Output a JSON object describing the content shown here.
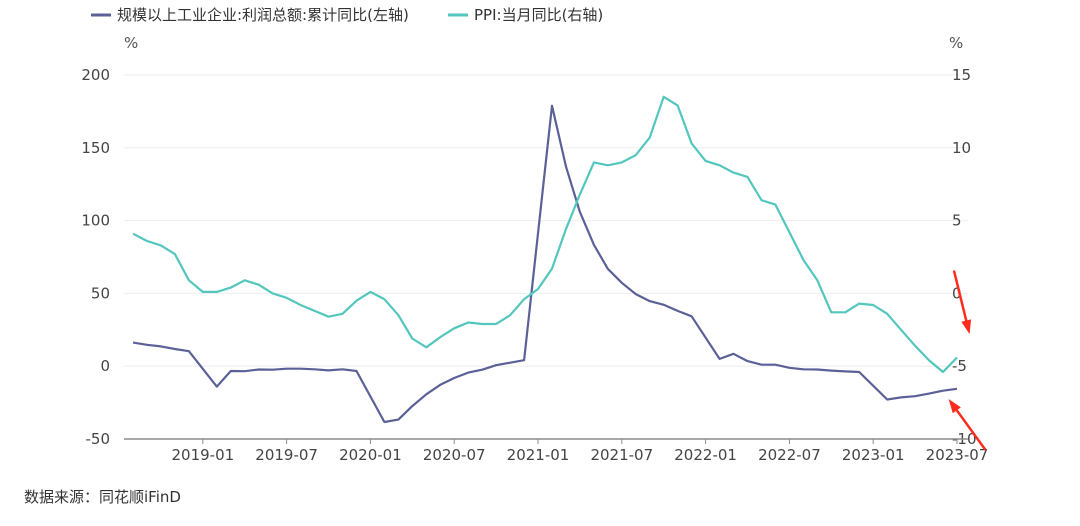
{
  "chart_data": {
    "type": "line",
    "title": "",
    "colors": {
      "series1": "#5b6197",
      "series2": "#53c6bd",
      "arrow": "#ff2b1c",
      "grid": "#eeeeee",
      "axis": "#8c8c8c"
    },
    "legend": {
      "position": "top-left",
      "entries": [
        "规模以上工业企业:利润总额:累计同比(左轴)",
        "PPI:当月同比(右轴)"
      ]
    },
    "left_axis": {
      "unit": "%",
      "ylim": [
        -50,
        200
      ],
      "ticks": [
        "200",
        "150",
        "100",
        "50",
        "0",
        "-50"
      ],
      "tick_values": [
        200,
        150,
        100,
        50,
        0,
        -50
      ]
    },
    "right_axis": {
      "unit": "%",
      "ylim": [
        -10,
        15
      ],
      "ticks": [
        "15",
        "10",
        "5",
        "0",
        "-5",
        "-10"
      ],
      "tick_values": [
        15,
        10,
        5,
        0,
        -5,
        -10
      ]
    },
    "x": {
      "start_month": "2018-08",
      "end_month": "2023-07",
      "tick_labels": [
        "2019-01",
        "2019-07",
        "2020-01",
        "2020-07",
        "2021-01",
        "2021-07",
        "2022-01",
        "2022-07",
        "2023-01",
        "2023-07"
      ],
      "tick_index": [
        5,
        11,
        17,
        23,
        29,
        35,
        41,
        47,
        53,
        59
      ]
    },
    "series": [
      {
        "name": "规模以上工业企业:利润总额:累计同比(左轴)",
        "axis": "left",
        "points": [
          [
            0,
            16.2
          ],
          [
            1,
            14.7
          ],
          [
            2,
            13.6
          ],
          [
            3,
            11.8
          ],
          [
            4,
            10.3
          ],
          [
            6,
            -14.0
          ],
          [
            7,
            -3.3
          ],
          [
            8,
            -3.4
          ],
          [
            9,
            -2.3
          ],
          [
            10,
            -2.4
          ],
          [
            11,
            -1.7
          ],
          [
            12,
            -1.7
          ],
          [
            13,
            -2.1
          ],
          [
            14,
            -2.9
          ],
          [
            15,
            -2.1
          ],
          [
            16,
            -3.3
          ],
          [
            18,
            -38.3
          ],
          [
            19,
            -36.7
          ],
          [
            20,
            -27.4
          ],
          [
            21,
            -19.3
          ],
          [
            22,
            -12.8
          ],
          [
            23,
            -8.1
          ],
          [
            24,
            -4.4
          ],
          [
            25,
            -2.4
          ],
          [
            26,
            0.7
          ],
          [
            27,
            2.4
          ],
          [
            28,
            4.1
          ],
          [
            30,
            178.9
          ],
          [
            31,
            137.3
          ],
          [
            32,
            106.0
          ],
          [
            33,
            83.4
          ],
          [
            34,
            66.9
          ],
          [
            35,
            57.3
          ],
          [
            36,
            49.5
          ],
          [
            37,
            44.7
          ],
          [
            38,
            42.2
          ],
          [
            39,
            38.0
          ],
          [
            40,
            34.3
          ],
          [
            42,
            5.0
          ],
          [
            43,
            8.5
          ],
          [
            44,
            3.5
          ],
          [
            45,
            1.0
          ],
          [
            46,
            1.0
          ],
          [
            47,
            -1.1
          ],
          [
            48,
            -2.1
          ],
          [
            49,
            -2.3
          ],
          [
            50,
            -3.0
          ],
          [
            51,
            -3.6
          ],
          [
            52,
            -4.0
          ],
          [
            54,
            -22.9
          ],
          [
            55,
            -21.4
          ],
          [
            56,
            -20.6
          ],
          [
            57,
            -18.8
          ],
          [
            58,
            -16.8
          ],
          [
            59,
            -15.5
          ]
        ]
      },
      {
        "name": "PPI:当月同比(右轴)",
        "axis": "right",
        "points": [
          [
            0,
            4.1
          ],
          [
            1,
            3.6
          ],
          [
            2,
            3.3
          ],
          [
            3,
            2.7
          ],
          [
            4,
            0.9
          ],
          [
            5,
            0.1
          ],
          [
            6,
            0.1
          ],
          [
            7,
            0.4
          ],
          [
            8,
            0.9
          ],
          [
            9,
            0.6
          ],
          [
            10,
            0.0
          ],
          [
            11,
            -0.3
          ],
          [
            12,
            -0.8
          ],
          [
            13,
            -1.2
          ],
          [
            14,
            -1.6
          ],
          [
            15,
            -1.4
          ],
          [
            16,
            -0.5
          ],
          [
            17,
            0.1
          ],
          [
            18,
            -0.4
          ],
          [
            19,
            -1.5
          ],
          [
            20,
            -3.1
          ],
          [
            21,
            -3.7
          ],
          [
            22,
            -3.0
          ],
          [
            23,
            -2.4
          ],
          [
            24,
            -2.0
          ],
          [
            25,
            -2.1
          ],
          [
            26,
            -2.1
          ],
          [
            27,
            -1.5
          ],
          [
            28,
            -0.4
          ],
          [
            29,
            0.3
          ],
          [
            30,
            1.7
          ],
          [
            31,
            4.4
          ],
          [
            32,
            6.8
          ],
          [
            33,
            9.0
          ],
          [
            34,
            8.8
          ],
          [
            35,
            9.0
          ],
          [
            36,
            9.5
          ],
          [
            37,
            10.7
          ],
          [
            38,
            13.5
          ],
          [
            39,
            12.9
          ],
          [
            40,
            10.3
          ],
          [
            41,
            9.1
          ],
          [
            42,
            8.8
          ],
          [
            43,
            8.3
          ],
          [
            44,
            8.0
          ],
          [
            45,
            6.4
          ],
          [
            46,
            6.1
          ],
          [
            47,
            4.2
          ],
          [
            48,
            2.3
          ],
          [
            49,
            0.9
          ],
          [
            50,
            -1.3
          ],
          [
            51,
            -1.3
          ],
          [
            52,
            -0.7
          ],
          [
            53,
            -0.8
          ],
          [
            54,
            -1.4
          ],
          [
            55,
            -2.5
          ],
          [
            56,
            -3.6
          ],
          [
            57,
            -4.6
          ],
          [
            58,
            -5.4
          ],
          [
            59,
            -4.4
          ]
        ]
      }
    ],
    "annotations": [
      {
        "type": "arrow",
        "label": "",
        "from": [
          58.8,
          1.5
        ],
        "to": [
          59.9,
          -2.8
        ],
        "axis": "right",
        "color": "#ff2b1c"
      },
      {
        "type": "arrow",
        "label": "",
        "from": [
          61.0,
          -57.0
        ],
        "to": [
          58.4,
          -22.5
        ],
        "axis": "left",
        "color": "#ff2b1c"
      }
    ]
  },
  "source": "数据来源：同花顺iFinD"
}
